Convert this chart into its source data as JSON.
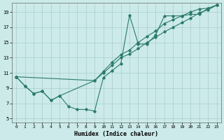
{
  "xlabel": "Humidex (Indice chaleur)",
  "bg_color": "#cceaea",
  "grid_color": "#aacccc",
  "line_color": "#2a7a6a",
  "xlim": [
    -0.5,
    23.5
  ],
  "ylim": [
    4.5,
    20.2
  ],
  "xticks": [
    0,
    1,
    2,
    3,
    4,
    5,
    6,
    7,
    8,
    9,
    10,
    11,
    12,
    13,
    14,
    15,
    16,
    17,
    18,
    19,
    20,
    21,
    22,
    23
  ],
  "yticks": [
    5,
    7,
    9,
    11,
    13,
    15,
    17,
    19
  ],
  "line1_x": [
    0,
    1,
    2,
    3,
    4,
    5,
    6,
    7,
    8,
    9,
    10,
    11,
    12,
    13,
    14,
    15,
    16,
    17,
    18,
    19,
    20,
    21,
    22,
    23
  ],
  "line1_y": [
    10.5,
    9.3,
    8.3,
    8.6,
    7.4,
    8.0,
    6.6,
    6.2,
    6.2,
    6.0,
    10.4,
    11.3,
    12.2,
    18.6,
    14.8,
    14.8,
    16.0,
    18.5,
    18.5,
    18.5,
    18.7,
    18.7,
    19.5,
    19.9
  ],
  "line2_x": [
    0,
    1,
    2,
    3,
    4,
    5,
    9,
    10,
    11,
    12,
    13,
    14,
    15,
    16,
    17,
    18,
    19,
    20,
    21,
    22,
    23
  ],
  "line2_y": [
    10.5,
    9.3,
    8.3,
    8.6,
    7.4,
    8.0,
    10.0,
    11.2,
    12.4,
    13.4,
    14.0,
    15.0,
    15.8,
    16.5,
    17.5,
    18.0,
    18.5,
    19.0,
    19.4,
    19.5,
    19.9
  ],
  "line3_x": [
    0,
    9,
    10,
    11,
    12,
    13,
    14,
    15,
    16,
    17,
    18,
    19,
    20,
    21,
    22,
    23
  ],
  "line3_y": [
    10.5,
    10.0,
    11.0,
    12.0,
    13.0,
    13.5,
    14.2,
    15.0,
    15.7,
    16.4,
    17.0,
    17.6,
    18.2,
    18.9,
    19.3,
    19.9
  ]
}
